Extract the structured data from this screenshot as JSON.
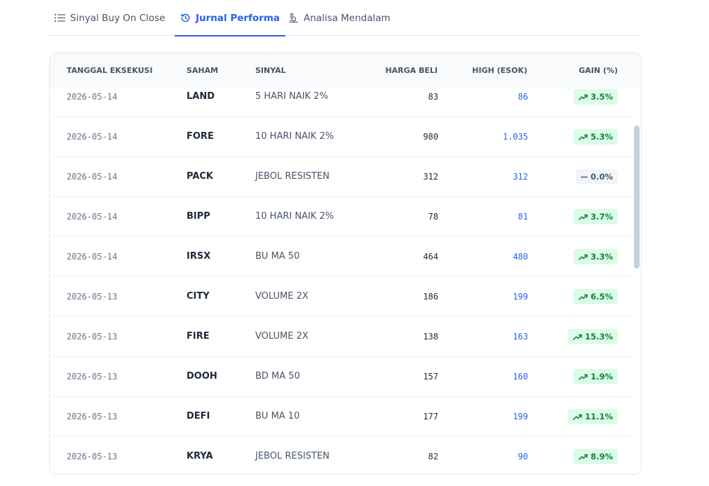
{
  "tabs": [
    {
      "label": "Sinyal Buy On Close",
      "icon": "list-icon",
      "active": false
    },
    {
      "label": "Jurnal Performa",
      "icon": "history-icon",
      "active": true
    },
    {
      "label": "Analisa Mendalam",
      "icon": "microscope-icon",
      "active": false
    }
  ],
  "table": {
    "headers": {
      "date": "TANGGAL EKSEKUSI",
      "ticker": "SAHAM",
      "signal": "SINYAL",
      "buy": "HARGA BELI",
      "high": "HIGH (ESOK)",
      "gain": "GAIN (%)"
    },
    "rows": [
      {
        "date": "2026-05-14",
        "ticker": "LAND",
        "signal": "5 HARI NAIK 2%",
        "buy": "83",
        "high": "86",
        "gain": "3.5%",
        "trend": "up"
      },
      {
        "date": "2026-05-14",
        "ticker": "FORE",
        "signal": "10 HARI NAIK 2%",
        "buy": "980",
        "high": "1.035",
        "gain": "5.3%",
        "trend": "up"
      },
      {
        "date": "2026-05-14",
        "ticker": "PACK",
        "signal": "JEBOL RESISTEN",
        "buy": "312",
        "high": "312",
        "gain": "0.0%",
        "trend": "flat"
      },
      {
        "date": "2026-05-14",
        "ticker": "BIPP",
        "signal": "10 HARI NAIK 2%",
        "buy": "78",
        "high": "81",
        "gain": "3.7%",
        "trend": "up"
      },
      {
        "date": "2026-05-14",
        "ticker": "IRSX",
        "signal": "BU MA 50",
        "buy": "464",
        "high": "480",
        "gain": "3.3%",
        "trend": "up"
      },
      {
        "date": "2026-05-13",
        "ticker": "CITY",
        "signal": "VOLUME 2X",
        "buy": "186",
        "high": "199",
        "gain": "6.5%",
        "trend": "up"
      },
      {
        "date": "2026-05-13",
        "ticker": "FIRE",
        "signal": "VOLUME 2X",
        "buy": "138",
        "high": "163",
        "gain": "15.3%",
        "trend": "up"
      },
      {
        "date": "2026-05-13",
        "ticker": "DOOH",
        "signal": "BD MA 50",
        "buy": "157",
        "high": "160",
        "gain": "1.9%",
        "trend": "up"
      },
      {
        "date": "2026-05-13",
        "ticker": "DEFI",
        "signal": "BU MA 10",
        "buy": "177",
        "high": "199",
        "gain": "11.1%",
        "trend": "up"
      },
      {
        "date": "2026-05-13",
        "ticker": "KRYA",
        "signal": "JEBOL RESISTEN",
        "buy": "82",
        "high": "90",
        "gain": "8.9%",
        "trend": "up"
      }
    ]
  },
  "colors": {
    "accent": "#2563eb",
    "gain_up_bg": "#dcfce7",
    "gain_up_text": "#15803d",
    "gain_flat_bg": "#f1f5f9",
    "gain_flat_text": "#475569"
  }
}
